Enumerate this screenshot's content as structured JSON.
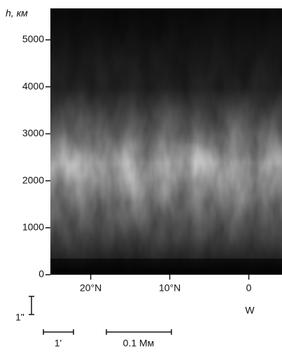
{
  "chart_data": {
    "type": "image",
    "ylabel": "h, км",
    "ylim": [
      0,
      5670
    ],
    "yticks": [
      0,
      1000,
      2000,
      3000,
      4000,
      5000
    ],
    "xlim": [
      25.1,
      -4.2
    ],
    "xticks": [
      {
        "value": 20,
        "label": "20°N"
      },
      {
        "value": 10,
        "label": "10°N"
      },
      0
    ],
    "x_note": "W",
    "scale_bars": [
      {
        "label": "1\""
      },
      {
        "label": "1'"
      },
      {
        "label": "0.1 Мм"
      }
    ]
  }
}
